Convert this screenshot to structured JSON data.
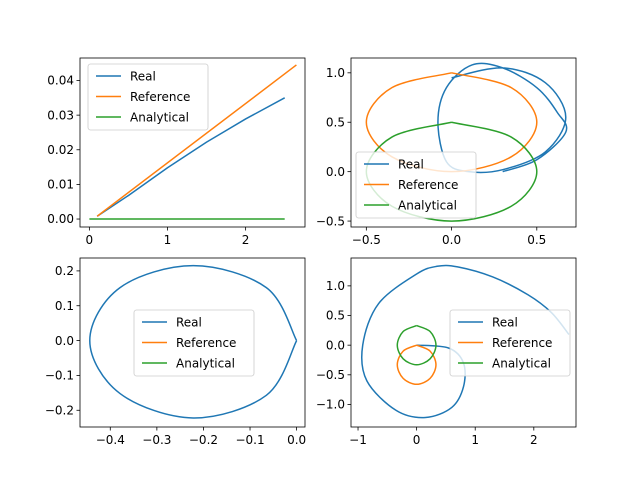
{
  "colors": {
    "Real": "#1f77b4",
    "Reference": "#ff7f0e",
    "Analytical": "#2ca02c"
  },
  "chart_data": [
    {
      "type": "line",
      "title": "",
      "xlabel": "",
      "ylabel": "",
      "xlim": [
        -0.12,
        2.76
      ],
      "ylim": [
        -0.0023,
        0.0465
      ],
      "xticks": [
        0,
        1,
        2
      ],
      "xtick_labels": [
        "0",
        "1",
        "2"
      ],
      "yticks": [
        0.0,
        0.01,
        0.02,
        0.03,
        0.04
      ],
      "ytick_labels": [
        "0.00",
        "0.01",
        "0.02",
        "0.03",
        "0.04"
      ],
      "legend": "upper-left",
      "grid": false,
      "series": [
        {
          "name": "Real",
          "x": [
            0.1,
            0.5,
            1.0,
            1.5,
            2.0,
            2.5
          ],
          "y": [
            0.0008,
            0.0068,
            0.0148,
            0.0222,
            0.0289,
            0.035
          ]
        },
        {
          "name": "Reference",
          "x": [
            0.1,
            2.65
          ],
          "y": [
            0.0008,
            0.0445
          ]
        },
        {
          "name": "Analytical",
          "x": [
            0.0,
            2.5
          ],
          "y": [
            0.0,
            0.0
          ]
        }
      ]
    },
    {
      "type": "line",
      "title": "",
      "xlabel": "",
      "ylabel": "",
      "xlim": [
        -0.59,
        0.73
      ],
      "ylim": [
        -0.56,
        1.15
      ],
      "xticks": [
        -0.5,
        0.0,
        0.5
      ],
      "xtick_labels": [
        "−0.5",
        "0.0",
        "0.5"
      ],
      "yticks": [
        -0.5,
        0.0,
        0.5,
        1.0
      ],
      "ytick_labels": [
        "−0.5",
        "0.0",
        "0.5",
        "1.0"
      ],
      "legend": "lower-left",
      "grid": false,
      "series": [
        {
          "name": "Real",
          "x": [
            0.0,
            0.3,
            0.55,
            0.67,
            0.55,
            0.3,
            0.1,
            -0.03,
            -0.08,
            -0.03,
            0.12,
            0.3,
            0.5,
            0.62,
            0.67,
            0.5,
            0.3
          ],
          "y": [
            0.95,
            1.05,
            0.9,
            0.55,
            0.2,
            0.02,
            0.0,
            0.1,
            0.5,
            0.85,
            1.08,
            1.05,
            0.85,
            0.6,
            0.4,
            0.12,
            0.0
          ]
        },
        {
          "name": "Reference",
          "x": [
            0.0,
            0.35,
            0.5,
            0.35,
            0.0,
            -0.35,
            -0.5,
            -0.35,
            0.0
          ],
          "y": [
            1.0,
            0.85,
            0.5,
            0.15,
            0.0,
            0.15,
            0.5,
            0.85,
            1.0
          ]
        },
        {
          "name": "Analytical",
          "x": [
            0.0,
            0.35,
            0.5,
            0.35,
            0.0,
            -0.35,
            -0.5,
            -0.35,
            0.0
          ],
          "y": [
            0.5,
            0.35,
            0.0,
            -0.35,
            -0.5,
            -0.35,
            0.0,
            0.35,
            0.5
          ]
        }
      ]
    },
    {
      "type": "line",
      "title": "",
      "xlabel": "",
      "ylabel": "",
      "xlim": [
        -0.465,
        0.018
      ],
      "ylim": [
        -0.248,
        0.237
      ],
      "xticks": [
        -0.4,
        -0.3,
        -0.2,
        -0.1,
        0.0
      ],
      "xtick_labels": [
        "−0.4",
        "−0.3",
        "−0.2",
        "−0.1",
        "0.0"
      ],
      "yticks": [
        -0.2,
        -0.1,
        0.0,
        0.1,
        0.2
      ],
      "ytick_labels": [
        "−0.2",
        "−0.1",
        "0.0",
        "0.1",
        "0.2"
      ],
      "legend": "center",
      "grid": false,
      "series": [
        {
          "name": "Real",
          "x": [
            0.0,
            -0.065,
            -0.222,
            -0.379,
            -0.444,
            -0.379,
            -0.222,
            -0.065,
            0.0
          ],
          "y": [
            0.0,
            0.152,
            0.215,
            0.152,
            0.0,
            -0.152,
            -0.222,
            -0.157,
            0.0
          ]
        },
        {
          "name": "Reference",
          "x": [],
          "y": []
        },
        {
          "name": "Analytical",
          "x": [],
          "y": []
        }
      ]
    },
    {
      "type": "line",
      "title": "",
      "xlabel": "",
      "ylabel": "",
      "xlim": [
        -1.12,
        2.72
      ],
      "ylim": [
        -1.38,
        1.47
      ],
      "xticks": [
        -1,
        0,
        1,
        2
      ],
      "xtick_labels": [
        "−1",
        "0",
        "1",
        "2"
      ],
      "yticks": [
        -1.0,
        -0.5,
        0.0,
        0.5,
        1.0
      ],
      "ytick_labels": [
        "−1.0",
        "−0.5",
        "0.0",
        "0.5",
        "1.0"
      ],
      "legend": "center-right",
      "grid": false,
      "series": [
        {
          "name": "Real",
          "x": [
            0.0,
            0.55,
            0.8,
            0.8,
            0.6,
            0.15,
            -0.35,
            -0.85,
            -0.92,
            -0.65,
            0.0,
            0.35,
            0.7,
            1.3,
            1.9,
            2.3,
            2.6
          ],
          "y": [
            0.0,
            -0.05,
            -0.3,
            -0.7,
            -1.05,
            -1.22,
            -1.1,
            -0.6,
            0.0,
            0.7,
            1.2,
            1.33,
            1.32,
            1.15,
            0.85,
            0.55,
            0.18
          ]
        },
        {
          "name": "Reference",
          "x": [
            0.0,
            0.23,
            0.33,
            0.23,
            0.0,
            -0.23,
            -0.33,
            -0.23,
            0.0
          ],
          "y": [
            0.0,
            -0.1,
            -0.33,
            -0.56,
            -0.66,
            -0.56,
            -0.33,
            -0.1,
            0.0
          ]
        },
        {
          "name": "Analytical",
          "x": [
            0.0,
            0.23,
            0.33,
            0.23,
            0.0,
            -0.23,
            -0.33,
            -0.23,
            0.0
          ],
          "y": [
            0.33,
            0.23,
            0.0,
            -0.23,
            -0.33,
            -0.23,
            0.0,
            0.23,
            0.33
          ]
        }
      ]
    }
  ]
}
